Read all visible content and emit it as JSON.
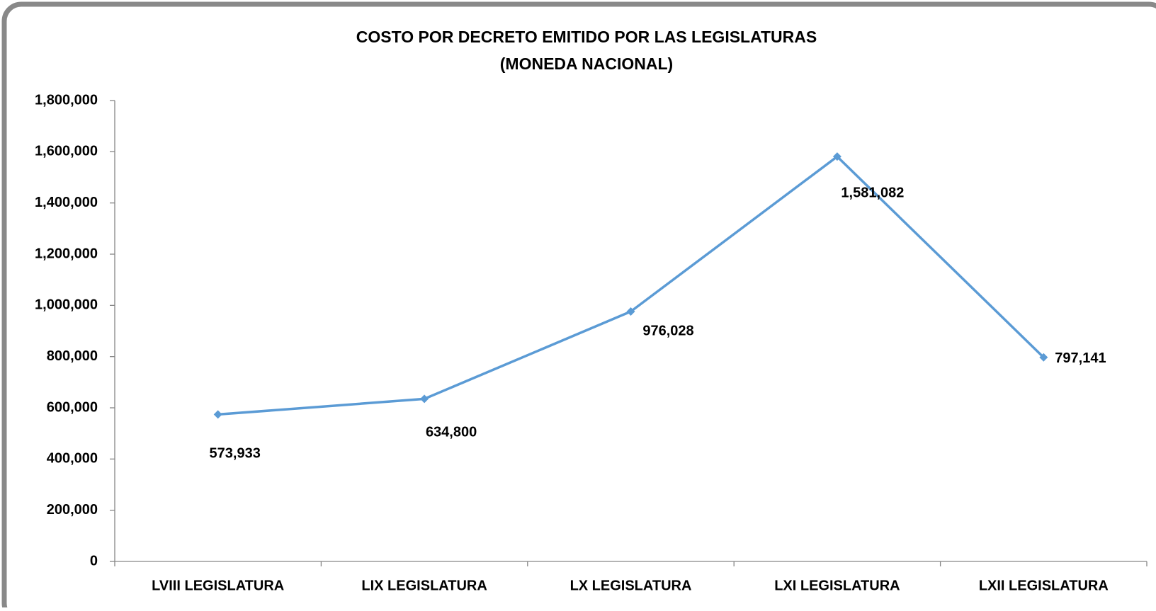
{
  "chart_data": {
    "type": "line",
    "title": [
      "COSTO POR DECRETO EMITIDO POR LAS LEGISLATURAS",
      "(MONEDA NACIONAL)"
    ],
    "categories": [
      "LVIII LEGISLATURA",
      "LIX LEGISLATURA",
      "LX LEGISLATURA",
      "LXI LEGISLATURA",
      "LXII LEGISLATURA"
    ],
    "series": [
      {
        "color": "#5b9bd5",
        "values": [
          573933,
          634800,
          976028,
          1581082,
          797141
        ],
        "value_labels": [
          "573,933",
          "634,800",
          "976,028",
          "1,581,082",
          "797,141"
        ]
      }
    ],
    "ylim": [
      0,
      1800000
    ],
    "yticks": [
      0,
      {
        "value": 200000,
        "label": "200,000"
      },
      {
        "value": 400000,
        "label": "400,000"
      },
      {
        "value": 600000,
        "label": "600,000"
      },
      {
        "value": 800000,
        "label": "800,000"
      },
      {
        "value": 1000000,
        "label": "1,000,000"
      },
      {
        "value": 1200000,
        "label": "1,200,000"
      },
      {
        "value": 1400000,
        "label": "1,400,000"
      },
      {
        "value": 1600000,
        "label": "1,600,000"
      },
      {
        "value": 1800000,
        "label": "1,800,000"
      }
    ]
  }
}
